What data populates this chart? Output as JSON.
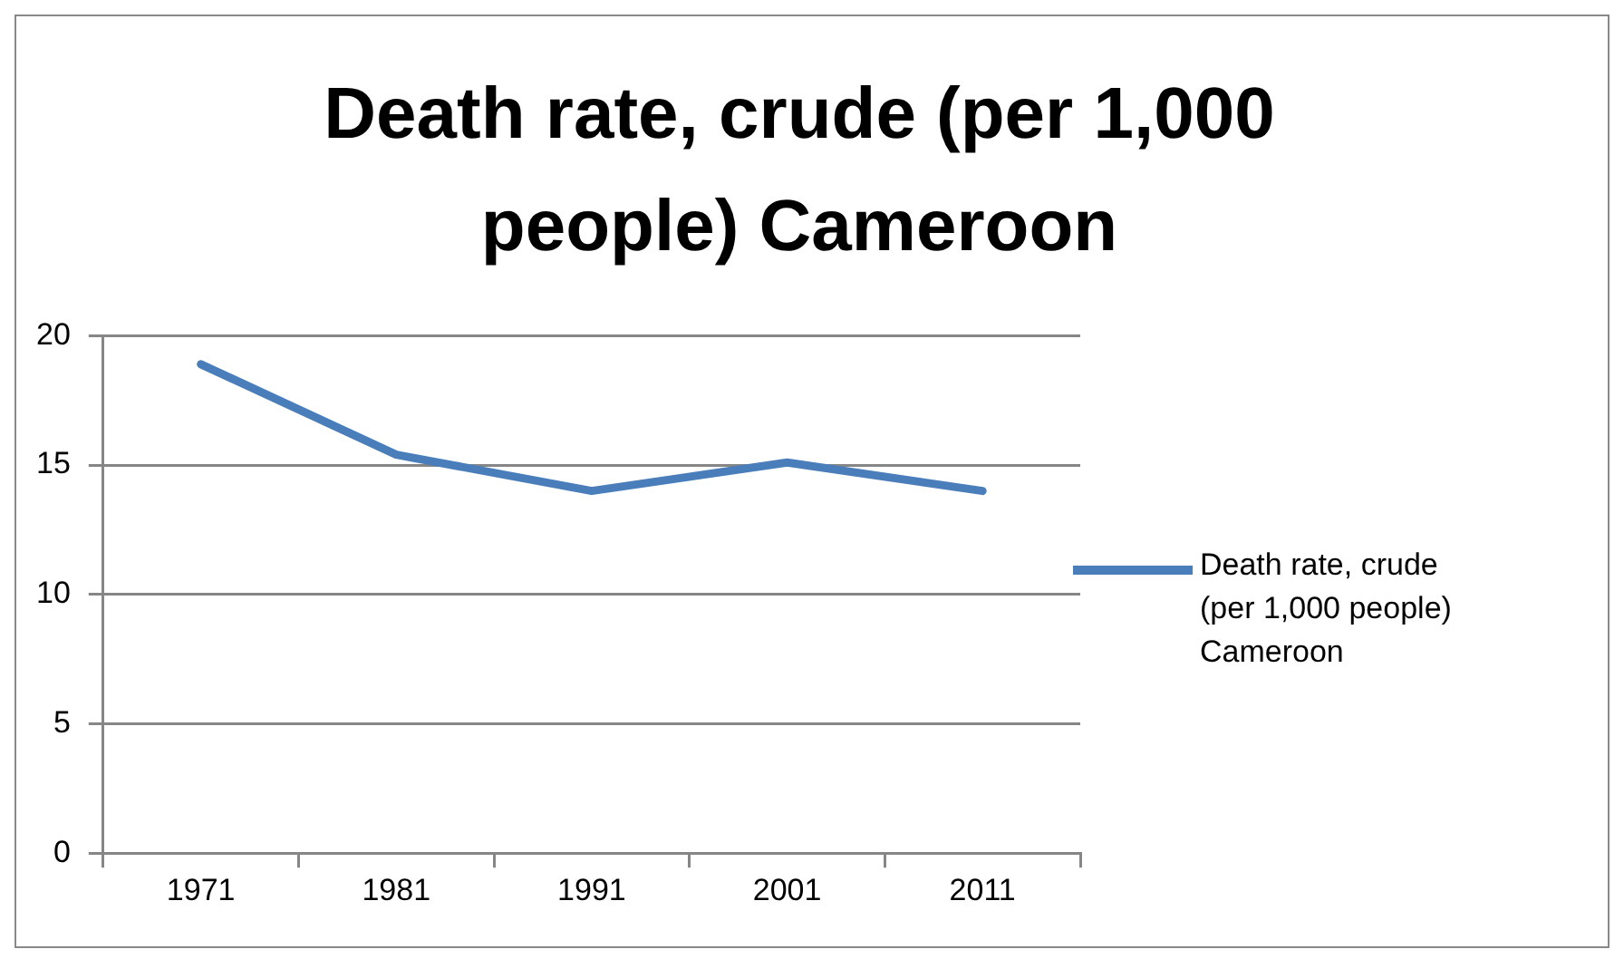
{
  "chart_data": {
    "type": "line",
    "title": "Death rate, crude (per 1,000 people) Cameroon",
    "categories": [
      "1971",
      "1981",
      "1991",
      "2001",
      "2011"
    ],
    "series": [
      {
        "name": "Death rate, crude (per 1,000 people) Cameroon",
        "color": "#4a7ebb",
        "values": [
          18.9,
          15.4,
          14.0,
          15.1,
          14.0
        ]
      }
    ],
    "ylim": [
      0,
      20
    ],
    "yticks": [
      0,
      5,
      10,
      15,
      20
    ],
    "grid": "y",
    "legend": "right",
    "marker": "none",
    "line_style": "solid"
  }
}
